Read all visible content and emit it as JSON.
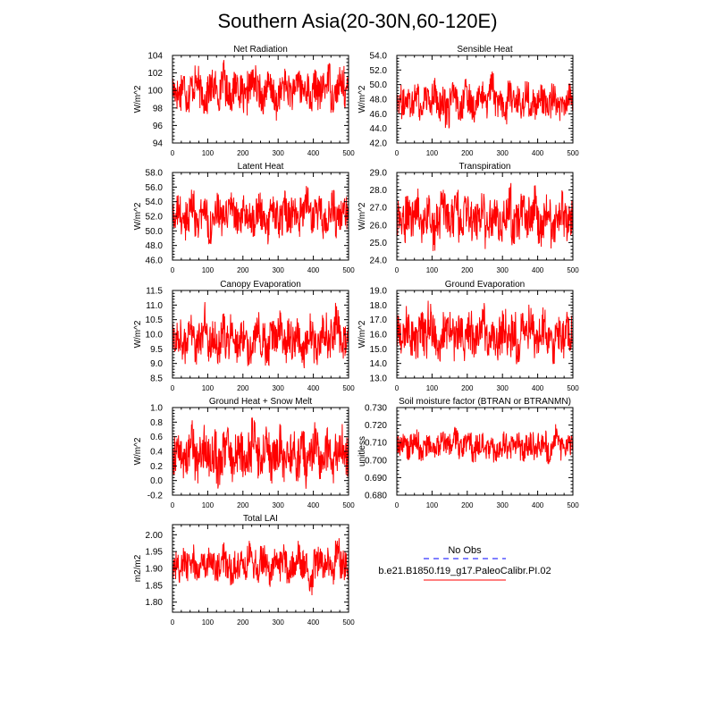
{
  "figure_title": "Southern Asia(20-30N,60-120E)",
  "legend": {
    "entries": [
      {
        "label": "No Obs",
        "color": "#0000ff",
        "style": "dashed"
      },
      {
        "label": "b.e21.B1850.f19_g17.PaleoCalibr.PI.02",
        "color": "#ff0000",
        "style": "solid"
      }
    ]
  },
  "chart_data": [
    {
      "type": "line",
      "title": "Net Radiation",
      "ylabel": "W/m^2",
      "xlim": [
        0,
        500
      ],
      "ylim": [
        94,
        104
      ],
      "xticks": [
        0,
        100,
        200,
        300,
        400,
        500
      ],
      "xtick_labels": [
        "0",
        "100",
        "200",
        "300",
        "400",
        "500"
      ],
      "yticks": [
        94,
        96,
        98,
        100,
        102,
        104
      ],
      "ytick_labels": [
        "94",
        "96",
        "98",
        "100",
        "102",
        "104"
      ],
      "series": [
        {
          "color": "#ff0000",
          "n": 500,
          "mean": 100.0,
          "std": 1.3,
          "values": [
            100.2,
            99.1,
            101.5,
            98.4,
            100.9,
            102.1,
            99.6,
            97.8,
            100.4,
            101.2,
            99.0,
            103.6,
            100.1,
            98.9,
            101.8,
            99.5,
            97.5,
            100.7,
            102.3,
            99.9,
            98.2,
            101.0,
            100.3,
            96.1,
            99.4,
            101.6,
            100.0,
            98.7,
            102.8,
            99.8,
            100.6,
            97.9,
            101.3,
            99.2,
            100.8,
            103.2,
            98.5,
            100.5,
            101.9,
            99.7
          ]
        }
      ]
    },
    {
      "type": "line",
      "title": "Sensible Heat",
      "ylabel": "W/m^2",
      "xlim": [
        0,
        500
      ],
      "ylim": [
        42,
        54
      ],
      "xticks": [
        0,
        100,
        200,
        300,
        400,
        500
      ],
      "xtick_labels": [
        "0",
        "100",
        "200",
        "300",
        "400",
        "500"
      ],
      "yticks": [
        42,
        44,
        46,
        48,
        50,
        52,
        54
      ],
      "ytick_labels": [
        "42.0",
        "44.0",
        "46.0",
        "48.0",
        "50.0",
        "52.0",
        "54.0"
      ],
      "series": [
        {
          "color": "#ff0000",
          "n": 500,
          "mean": 47.7,
          "std": 1.4,
          "values": [
            48.2,
            46.9,
            49.5,
            47.1,
            50.6,
            45.3,
            48.8,
            47.4,
            51.2,
            46.2,
            48.0,
            44.1,
            49.1,
            47.7,
            46.5,
            50.1,
            48.4,
            45.8,
            47.9,
            49.8,
            46.7,
            52.2,
            47.2,
            48.6,
            45.1,
            49.4,
            47.0,
            48.3,
            46.4,
            50.4,
            47.6,
            45.9,
            48.9,
            47.3,
            46.1,
            49.6,
            48.1,
            45.6,
            47.8,
            48.5
          ]
        }
      ]
    },
    {
      "type": "line",
      "title": "Latent Heat",
      "ylabel": "W/m^2",
      "xlim": [
        0,
        500
      ],
      "ylim": [
        46,
        58
      ],
      "xticks": [
        0,
        100,
        200,
        300,
        400,
        500
      ],
      "xtick_labels": [
        "0",
        "100",
        "200",
        "300",
        "400",
        "500"
      ],
      "yticks": [
        46,
        48,
        50,
        52,
        54,
        56,
        58
      ],
      "ytick_labels": [
        "46.0",
        "48.0",
        "50.0",
        "52.0",
        "54.0",
        "56.0",
        "58.0"
      ],
      "series": [
        {
          "color": "#ff0000",
          "n": 500,
          "mean": 52.0,
          "std": 1.6,
          "values": [
            51.8,
            53.4,
            49.9,
            52.6,
            55.1,
            50.7,
            52.2,
            54.3,
            48.6,
            51.5,
            53.8,
            50.2,
            52.9,
            56.0,
            51.1,
            49.4,
            53.1,
            52.4,
            50.9,
            54.7,
            51.9,
            48.2,
            53.6,
            52.0,
            50.4,
            55.6,
            51.3,
            52.8,
            49.6,
            54.0,
            57.3,
            50.8,
            52.5,
            53.3,
            49.1,
            51.7,
            54.9,
            50.6,
            52.3,
            53.0
          ]
        }
      ]
    },
    {
      "type": "line",
      "title": "Transpiration",
      "ylabel": "W/m^2",
      "xlim": [
        0,
        500
      ],
      "ylim": [
        24,
        29
      ],
      "xticks": [
        0,
        100,
        200,
        300,
        400,
        500
      ],
      "xtick_labels": [
        "0",
        "100",
        "200",
        "300",
        "400",
        "500"
      ],
      "yticks": [
        24,
        25,
        26,
        27,
        28,
        29
      ],
      "ytick_labels": [
        "24.0",
        "25.0",
        "26.0",
        "27.0",
        "28.0",
        "29.0"
      ],
      "series": [
        {
          "color": "#ff0000",
          "n": 500,
          "mean": 26.4,
          "std": 0.75,
          "values": [
            26.3,
            25.6,
            27.2,
            26.0,
            27.8,
            25.1,
            26.6,
            26.9,
            24.6,
            26.2,
            27.5,
            25.8,
            26.4,
            28.1,
            25.4,
            26.7,
            27.0,
            25.9,
            26.1,
            27.6,
            24.9,
            26.5,
            27.3,
            25.7,
            26.8,
            28.4,
            25.3,
            26.0,
            27.1,
            25.5,
            26.9,
            28.6,
            25.2,
            26.3,
            27.4,
            25.0,
            26.6,
            27.9,
            25.8,
            26.2
          ]
        }
      ]
    },
    {
      "type": "line",
      "title": "Canopy Evaporation",
      "ylabel": "W/m^2",
      "xlim": [
        0,
        500
      ],
      "ylim": [
        8.5,
        11.5
      ],
      "xticks": [
        0,
        100,
        200,
        300,
        400,
        500
      ],
      "xtick_labels": [
        "0",
        "100",
        "200",
        "300",
        "400",
        "500"
      ],
      "yticks": [
        8.5,
        9.0,
        9.5,
        10.0,
        10.5,
        11.0,
        11.5
      ],
      "ytick_labels": [
        "8.5",
        "9.0",
        "9.5",
        "10.0",
        "10.5",
        "11.0",
        "11.5"
      ],
      "series": [
        {
          "color": "#ff0000",
          "n": 500,
          "mean": 9.85,
          "std": 0.42,
          "values": [
            9.7,
            10.1,
            9.3,
            9.9,
            10.6,
            9.2,
            9.8,
            11.3,
            9.5,
            10.0,
            9.1,
            10.4,
            9.6,
            10.9,
            9.4,
            9.9,
            10.2,
            8.9,
            9.8,
            10.5,
            9.7,
            9.0,
            10.3,
            9.6,
            10.7,
            9.3,
            10.0,
            9.5,
            10.1,
            8.7,
            9.9,
            10.4,
            9.2,
            9.8,
            10.6,
            9.4,
            10.2,
            11.2,
            9.6,
            9.9
          ]
        }
      ]
    },
    {
      "type": "line",
      "title": "Ground Evaporation",
      "ylabel": "W/m^2",
      "xlim": [
        0,
        500
      ],
      "ylim": [
        13,
        19
      ],
      "xticks": [
        0,
        100,
        200,
        300,
        400,
        500
      ],
      "xtick_labels": [
        "0",
        "100",
        "200",
        "300",
        "400",
        "500"
      ],
      "yticks": [
        13,
        14,
        15,
        16,
        17,
        18,
        19
      ],
      "ytick_labels": [
        "13.0",
        "14.0",
        "15.0",
        "16.0",
        "17.0",
        "18.0",
        "19.0"
      ],
      "series": [
        {
          "color": "#ff0000",
          "n": 500,
          "mean": 15.9,
          "std": 0.95,
          "values": [
            16.1,
            15.2,
            17.3,
            15.8,
            14.6,
            16.7,
            15.4,
            18.1,
            16.0,
            14.9,
            16.5,
            15.6,
            17.6,
            15.1,
            16.3,
            14.3,
            16.8,
            15.7,
            16.2,
            17.9,
            15.3,
            16.6,
            14.8,
            16.0,
            17.1,
            15.5,
            16.4,
            14.1,
            16.9,
            15.9,
            18.4,
            15.0,
            16.2,
            17.4,
            15.6,
            14.7,
            16.8,
            15.3,
            17.0,
            15.8
          ]
        }
      ]
    },
    {
      "type": "line",
      "title": "Ground Heat + Snow Melt",
      "ylabel": "W/m^2",
      "xlim": [
        0,
        500
      ],
      "ylim": [
        -0.2,
        1.0
      ],
      "xticks": [
        0,
        100,
        200,
        300,
        400,
        500
      ],
      "xtick_labels": [
        "0",
        "100",
        "200",
        "300",
        "400",
        "500"
      ],
      "yticks": [
        -0.2,
        0.0,
        0.2,
        0.4,
        0.6,
        0.8,
        1.0
      ],
      "ytick_labels": [
        "-0.2",
        "0.0",
        "0.2",
        "0.4",
        "0.6",
        "0.8",
        "1.0"
      ],
      "series": [
        {
          "color": "#ff0000",
          "n": 500,
          "mean": 0.35,
          "std": 0.2,
          "values": [
            0.31,
            0.55,
            0.12,
            0.42,
            0.78,
            0.05,
            0.36,
            0.61,
            0.22,
            0.47,
            -0.08,
            0.39,
            0.69,
            0.18,
            0.33,
            0.51,
            0.02,
            0.44,
            0.83,
            0.27,
            0.35,
            0.58,
            0.14,
            0.4,
            0.66,
            0.09,
            0.37,
            0.53,
            0.2,
            0.45,
            -0.02,
            0.38,
            0.72,
            0.25,
            0.32,
            0.57,
            0.11,
            0.43,
            0.64,
            0.29
          ]
        }
      ]
    },
    {
      "type": "line",
      "title": "Soil moisture factor (BTRAN or BTRANMN)",
      "ylabel": "unitless",
      "xlim": [
        0,
        500
      ],
      "ylim": [
        0.68,
        0.73
      ],
      "xticks": [
        0,
        100,
        200,
        300,
        400,
        500
      ],
      "xtick_labels": [
        "0",
        "100",
        "200",
        "300",
        "400",
        "500"
      ],
      "yticks": [
        0.68,
        0.69,
        0.7,
        0.71,
        0.72,
        0.73
      ],
      "ytick_labels": [
        "0.680",
        "0.690",
        "0.700",
        "0.710",
        "0.720",
        "0.730"
      ],
      "series": [
        {
          "color": "#ff0000",
          "n": 500,
          "mean": 0.708,
          "std": 0.0045,
          "values": [
            0.708,
            0.712,
            0.704,
            0.709,
            0.715,
            0.702,
            0.707,
            0.711,
            0.699,
            0.708,
            0.713,
            0.705,
            0.71,
            0.718,
            0.703,
            0.708,
            0.711,
            0.701,
            0.709,
            0.714,
            0.706,
            0.71,
            0.697,
            0.708,
            0.712,
            0.704,
            0.709,
            0.716,
            0.702,
            0.707,
            0.711,
            0.705,
            0.71,
            0.713,
            0.7,
            0.708,
            0.721,
            0.704,
            0.709,
            0.711
          ]
        }
      ]
    },
    {
      "type": "line",
      "title": "Total LAI",
      "ylabel": "m2/m2",
      "xlim": [
        0,
        500
      ],
      "ylim": [
        1.77,
        2.03
      ],
      "xticks": [
        0,
        100,
        200,
        300,
        400,
        500
      ],
      "xtick_labels": [
        "0",
        "100",
        "200",
        "300",
        "400",
        "500"
      ],
      "yticks": [
        1.8,
        1.85,
        1.9,
        1.95,
        2.0
      ],
      "ytick_labels": [
        "1.80",
        "1.85",
        "1.90",
        "1.95",
        "2.00"
      ],
      "series": [
        {
          "color": "#ff0000",
          "n": 500,
          "mean": 1.91,
          "std": 0.03,
          "values": [
            1.91,
            1.89,
            1.93,
            1.9,
            1.95,
            1.88,
            1.92,
            1.91,
            1.94,
            1.89,
            1.9,
            1.96,
            1.92,
            1.87,
            1.91,
            1.93,
            1.9,
            1.99,
            1.92,
            1.89,
            1.94,
            1.91,
            1.86,
            1.93,
            1.9,
            1.95,
            1.88,
            1.92,
            1.97,
            1.91,
            1.89,
            1.79,
            1.92,
            1.94,
            1.9,
            1.93,
            1.88,
            2.0,
            1.91,
            1.9
          ]
        }
      ]
    }
  ]
}
